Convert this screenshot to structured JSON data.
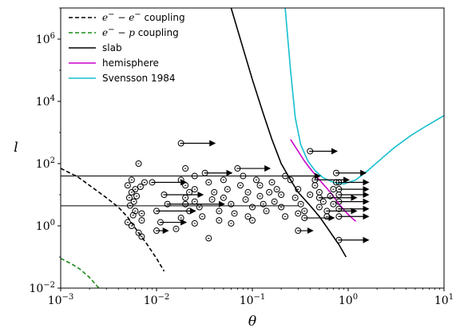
{
  "chart_data": {
    "type": "scatter",
    "xlabel": "θ",
    "ylabel": "l",
    "xscale": "log",
    "yscale": "log",
    "xlim": [
      0.001,
      10
    ],
    "ylim": [
      0.01,
      10000000
    ],
    "x_ticks": [
      {
        "base": "10",
        "exp": "−3",
        "value": 0.001
      },
      {
        "base": "10",
        "exp": "−2",
        "value": 0.01
      },
      {
        "base": "10",
        "exp": "−1",
        "value": 0.1
      },
      {
        "base": "10",
        "exp": "0",
        "value": 1
      },
      {
        "base": "10",
        "exp": "1",
        "value": 10
      }
    ],
    "y_ticks": [
      {
        "base": "10",
        "exp": "−2",
        "value": 0.01
      },
      {
        "base": "10",
        "exp": "0",
        "value": 1
      },
      {
        "base": "10",
        "exp": "2",
        "value": 100
      },
      {
        "base": "10",
        "exp": "4",
        "value": 10000
      },
      {
        "base": "10",
        "exp": "6",
        "value": 1000000
      }
    ],
    "legend_position": "top-left",
    "legend": [
      {
        "id": "ee",
        "prefix": "e",
        "prefix_sup": "−",
        "mid": " − ",
        "suffix_math": "e",
        "suffix_sup": "−",
        "text": " coupling",
        "color": "#000000",
        "dash": true
      },
      {
        "id": "ep",
        "prefix": "e",
        "prefix_sup": "−",
        "mid": " − ",
        "suffix_math": "p",
        "suffix_sup": "",
        "text": " coupling",
        "color": "#1a8a1a",
        "dash": true
      },
      {
        "id": "slab",
        "text": "slab",
        "color": "#000000",
        "dash": false
      },
      {
        "id": "hemi",
        "text": "hemisphere",
        "color": "#cc00cc",
        "dash": false
      },
      {
        "id": "sv",
        "text": "Svensson 1984",
        "color": "#17becf",
        "dash": false
      }
    ],
    "curves": {
      "ee": [
        [
          0.001,
          70
        ],
        [
          0.0015,
          38
        ],
        [
          0.002,
          20
        ],
        [
          0.003,
          8
        ],
        [
          0.004,
          4
        ],
        [
          0.005,
          1.9
        ],
        [
          0.006,
          0.85
        ],
        [
          0.008,
          0.25
        ],
        [
          0.01,
          0.09
        ],
        [
          0.012,
          0.035
        ]
      ],
      "ep": [
        [
          0.001,
          0.09
        ],
        [
          0.0013,
          0.06
        ],
        [
          0.0016,
          0.04
        ],
        [
          0.002,
          0.022
        ],
        [
          0.0025,
          0.01
        ]
      ],
      "slab": [
        [
          0.06,
          10000000
        ],
        [
          0.08,
          500000
        ],
        [
          0.1,
          50000
        ],
        [
          0.13,
          4000
        ],
        [
          0.16,
          600
        ],
        [
          0.2,
          100
        ],
        [
          0.25,
          30
        ],
        [
          0.3,
          12
        ],
        [
          0.4,
          4.5
        ],
        [
          0.5,
          2
        ],
        [
          0.6,
          0.9
        ],
        [
          0.7,
          0.45
        ],
        [
          0.8,
          0.25
        ],
        [
          0.95,
          0.1
        ]
      ],
      "hemi": [
        [
          0.25,
          600
        ],
        [
          0.3,
          250
        ],
        [
          0.35,
          120
        ],
        [
          0.4,
          70
        ],
        [
          0.5,
          30
        ],
        [
          0.6,
          16
        ],
        [
          0.7,
          9
        ],
        [
          0.8,
          5
        ],
        [
          1.0,
          2.3
        ],
        [
          1.2,
          1.4
        ]
      ],
      "sv": [
        [
          0.22,
          10000000
        ],
        [
          0.25,
          100000
        ],
        [
          0.28,
          3000
        ],
        [
          0.32,
          400
        ],
        [
          0.38,
          120
        ],
        [
          0.45,
          60
        ],
        [
          0.55,
          35
        ],
        [
          0.7,
          25
        ],
        [
          0.9,
          22
        ],
        [
          1.2,
          30
        ],
        [
          1.6,
          60
        ],
        [
          2.2,
          140
        ],
        [
          3,
          320
        ],
        [
          4.5,
          800
        ],
        [
          6.5,
          1600
        ],
        [
          10,
          3500
        ]
      ]
    },
    "hlines": [
      {
        "x0": 0.001,
        "x1": 0.3,
        "y": 40
      },
      {
        "x0": 0.001,
        "x1": 0.3,
        "y": 4.4
      }
    ],
    "points": [
      {
        "x": 0.018,
        "y": 450,
        "arrow_to": 0.04
      },
      {
        "x": 0.0065,
        "y": 100
      },
      {
        "x": 0.005,
        "y": 20
      },
      {
        "x": 0.0055,
        "y": 30
      },
      {
        "x": 0.006,
        "y": 15
      },
      {
        "x": 0.0058,
        "y": 6
      },
      {
        "x": 0.006,
        "y": 3
      },
      {
        "x": 0.0053,
        "y": 4.5
      },
      {
        "x": 0.005,
        "y": 1.3
      },
      {
        "x": 0.0055,
        "y": 1.0
      },
      {
        "x": 0.0065,
        "y": 0.6
      },
      {
        "x": 0.007,
        "y": 0.45
      },
      {
        "x": 0.007,
        "y": 1.5
      },
      {
        "x": 0.0062,
        "y": 9
      },
      {
        "x": 0.0075,
        "y": 25
      },
      {
        "x": 0.007,
        "y": 2.5
      },
      {
        "x": 0.0055,
        "y": 12
      },
      {
        "x": 0.0052,
        "y": 8
      },
      {
        "x": 0.0068,
        "y": 18
      },
      {
        "x": 0.0057,
        "y": 2.2
      },
      {
        "x": 0.01,
        "y": 0.7,
        "arrow_to": 0.013
      },
      {
        "x": 0.016,
        "y": 0.8
      },
      {
        "x": 0.012,
        "y": 10,
        "arrow_to": 0.03
      },
      {
        "x": 0.013,
        "y": 5,
        "arrow_to": 0.05
      },
      {
        "x": 0.01,
        "y": 3,
        "arrow_to": 0.025
      },
      {
        "x": 0.009,
        "y": 25,
        "arrow_to": 0.02
      },
      {
        "x": 0.011,
        "y": 1.3,
        "arrow_to": 0.02
      },
      {
        "x": 0.02,
        "y": 70
      },
      {
        "x": 0.018,
        "y": 30
      },
      {
        "x": 0.02,
        "y": 20
      },
      {
        "x": 0.022,
        "y": 12
      },
      {
        "x": 0.02,
        "y": 8
      },
      {
        "x": 0.02,
        "y": 5
      },
      {
        "x": 0.022,
        "y": 3
      },
      {
        "x": 0.018,
        "y": 1.8
      },
      {
        "x": 0.025,
        "y": 40
      },
      {
        "x": 0.025,
        "y": 15
      },
      {
        "x": 0.025,
        "y": 6
      },
      {
        "x": 0.028,
        "y": 4
      },
      {
        "x": 0.03,
        "y": 2
      },
      {
        "x": 0.032,
        "y": 50,
        "arrow_to": 0.06
      },
      {
        "x": 0.035,
        "y": 25
      },
      {
        "x": 0.04,
        "y": 12
      },
      {
        "x": 0.038,
        "y": 7
      },
      {
        "x": 0.045,
        "y": 3
      },
      {
        "x": 0.045,
        "y": 1.5
      },
      {
        "x": 0.05,
        "y": 30
      },
      {
        "x": 0.055,
        "y": 15
      },
      {
        "x": 0.05,
        "y": 8
      },
      {
        "x": 0.06,
        "y": 5
      },
      {
        "x": 0.065,
        "y": 2.5
      },
      {
        "x": 0.07,
        "y": 70,
        "arrow_to": 0.15
      },
      {
        "x": 0.08,
        "y": 40
      },
      {
        "x": 0.075,
        "y": 20
      },
      {
        "x": 0.09,
        "y": 12
      },
      {
        "x": 0.085,
        "y": 7
      },
      {
        "x": 0.1,
        "y": 4
      },
      {
        "x": 0.09,
        "y": 2
      },
      {
        "x": 0.1,
        "y": 1.5
      },
      {
        "x": 0.11,
        "y": 30
      },
      {
        "x": 0.12,
        "y": 20
      },
      {
        "x": 0.12,
        "y": 9
      },
      {
        "x": 0.13,
        "y": 5
      },
      {
        "x": 0.14,
        "y": 3
      },
      {
        "x": 0.15,
        "y": 12
      },
      {
        "x": 0.16,
        "y": 25
      },
      {
        "x": 0.17,
        "y": 6
      },
      {
        "x": 0.18,
        "y": 15
      },
      {
        "x": 0.2,
        "y": 10
      },
      {
        "x": 0.2,
        "y": 4
      },
      {
        "x": 0.22,
        "y": 2
      },
      {
        "x": 0.25,
        "y": 30
      },
      {
        "x": 0.22,
        "y": 40,
        "arrow_to": 0.5
      },
      {
        "x": 0.3,
        "y": 15
      },
      {
        "x": 0.28,
        "y": 8
      },
      {
        "x": 0.32,
        "y": 5
      },
      {
        "x": 0.35,
        "y": 3
      },
      {
        "x": 0.3,
        "y": 2.5
      },
      {
        "x": 0.35,
        "y": 1.8,
        "arrow_to": 0.7
      },
      {
        "x": 0.4,
        "y": 10
      },
      {
        "x": 0.45,
        "y": 20
      },
      {
        "x": 0.5,
        "y": 12
      },
      {
        "x": 0.55,
        "y": 6
      },
      {
        "x": 0.5,
        "y": 4
      },
      {
        "x": 0.6,
        "y": 2
      },
      {
        "x": 0.65,
        "y": 9
      },
      {
        "x": 0.7,
        "y": 15
      },
      {
        "x": 0.75,
        "y": 25
      },
      {
        "x": 0.7,
        "y": 5
      },
      {
        "x": 0.4,
        "y": 250,
        "arrow_to": 0.75
      },
      {
        "x": 0.75,
        "y": 50,
        "arrow_to": 1.5
      },
      {
        "x": 0.8,
        "y": 25,
        "arrow_to": 1.6
      },
      {
        "x": 0.8,
        "y": 15,
        "arrow_to": 1.6
      },
      {
        "x": 0.8,
        "y": 10,
        "arrow_to": 1.6
      },
      {
        "x": 0.8,
        "y": 6,
        "arrow_to": 1.6
      },
      {
        "x": 0.8,
        "y": 3.5,
        "arrow_to": 1.6
      },
      {
        "x": 0.8,
        "y": 2,
        "arrow_to": 1.6
      },
      {
        "x": 0.8,
        "y": 0.35,
        "arrow_to": 1.6
      },
      {
        "x": 0.45,
        "y": 30,
        "arrow_to": 1.0
      },
      {
        "x": 0.5,
        "y": 8,
        "arrow_to": 1.2
      },
      {
        "x": 0.6,
        "y": 3,
        "arrow_to": 1.2
      },
      {
        "x": 0.3,
        "y": 0.7,
        "arrow_to": 0.42
      },
      {
        "x": 0.06,
        "y": 1.2
      },
      {
        "x": 0.035,
        "y": 0.4
      },
      {
        "x": 0.025,
        "y": 1.2
      }
    ]
  }
}
